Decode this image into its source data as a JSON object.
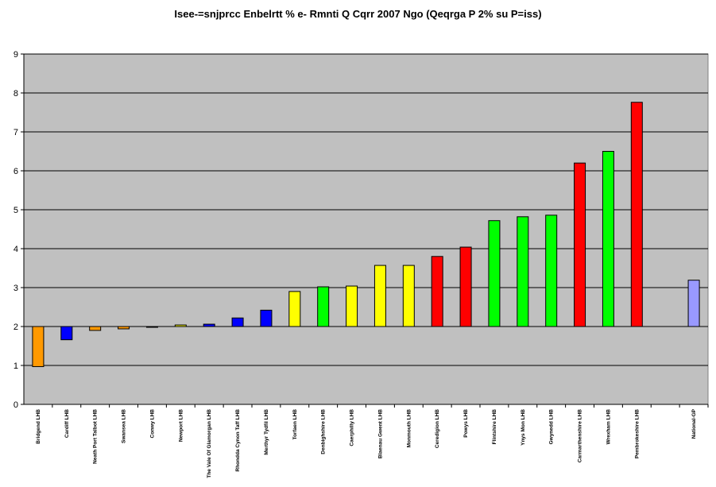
{
  "chart_data": {
    "type": "bar",
    "title": "Isee-=snjprcc Enbelrtt % e- Rmnti Q Cqrr 2007 Ngo (Qeqrga P 2% su P=iss)",
    "xlabel": "",
    "ylabel": "",
    "ylim": [
      0,
      9
    ],
    "y_ticks": [
      0,
      1,
      2,
      3,
      4,
      5,
      6,
      7,
      8,
      9
    ],
    "baseline": 2,
    "grid": true,
    "plot_background": "#c0c0c0",
    "categories": [
      "Bridgend LHB",
      "Cardiff LHB",
      "Neath Port Talbot LHB",
      "Swansea LHB",
      "Conwy LHB",
      "Newport LHB",
      "The Vale Of Glamorgan LHB",
      "Rhondda Cynon Taff LHB",
      "Merthyr Tydfil LHB",
      "Torfaen LHB",
      "Denbighshire LHB",
      "Caerphilly LHB",
      "Blaenau Gwent LHB",
      "Monmouth LHB",
      "Ceredigion LHB",
      "Powys LHB",
      "Flintshire LHB",
      "Ynys Mon LHB",
      "Gwynedd LHB",
      "Carmarthenshire LHB",
      "Wrexham LHB",
      "Pembrokeshire LHB",
      "",
      "National-GP"
    ],
    "values": [
      0.97,
      1.66,
      1.9,
      1.94,
      1.98,
      2.04,
      2.06,
      2.22,
      2.42,
      2.9,
      3.02,
      3.04,
      3.57,
      3.57,
      3.8,
      4.04,
      4.72,
      4.82,
      4.86,
      6.2,
      6.5,
      7.76,
      null,
      3.19
    ],
    "colors": [
      "#ff9900",
      "#0000ff",
      "#ff9900",
      "#ff9900",
      "#000080",
      "#ffff00",
      "#0000ff",
      "#0000ff",
      "#0000ff",
      "#ffff00",
      "#00ff00",
      "#ffff00",
      "#ffff00",
      "#ffff00",
      "#ff0000",
      "#ff0000",
      "#00ff00",
      "#00ff00",
      "#00ff00",
      "#ff0000",
      "#00ff00",
      "#ff0000",
      "",
      "#9999ff"
    ]
  }
}
